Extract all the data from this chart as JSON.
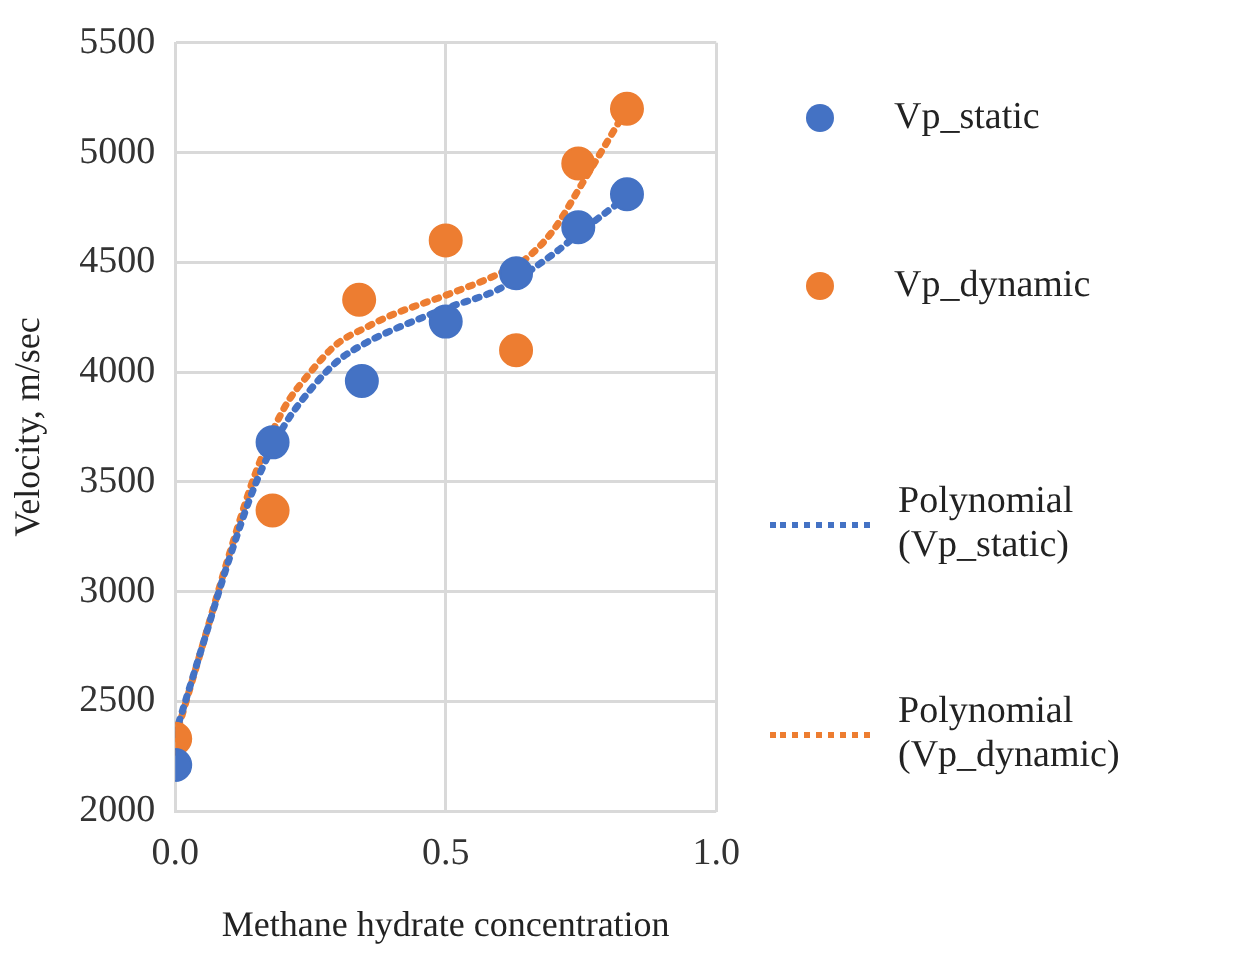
{
  "chart_data": {
    "type": "scatter",
    "xlabel": "Methane hydrate concentration",
    "ylabel": "Velocity, m/sec",
    "xlim": [
      0,
      1
    ],
    "xticks": [
      {
        "value": 0,
        "label": "0.0"
      },
      {
        "value": 0.5,
        "label": "0.5"
      },
      {
        "value": 1,
        "label": "1.0"
      }
    ],
    "ylim": [
      2000,
      5500
    ],
    "yticks": [
      2000,
      2500,
      3000,
      3500,
      4000,
      4500,
      5000,
      5500
    ],
    "grid": true,
    "legend": "right",
    "marker": "circle",
    "series": [
      {
        "name": "Vp_static",
        "color": "#4472c4",
        "x": [
          0,
          0.18,
          0.345,
          0.5,
          0.63,
          0.745,
          0.835
        ],
        "values": [
          2210,
          3680,
          3960,
          4230,
          4450,
          4660,
          4810
        ]
      },
      {
        "name": "Vp_dynamic",
        "color": "#ed7d31",
        "x": [
          0,
          0.18,
          0.34,
          0.5,
          0.63,
          0.745,
          0.835
        ],
        "values": [
          2330,
          3370,
          4330,
          4600,
          4100,
          4950,
          5200
        ]
      },
      {
        "name": "Polynomial (Vp_static)",
        "type": "line",
        "line_style": "dotted",
        "marker": "none",
        "color": "#4472c4",
        "x": [
          0,
          0.05,
          0.1,
          0.15,
          0.2,
          0.25,
          0.3,
          0.35,
          0.4,
          0.5,
          0.6,
          0.7,
          0.75,
          0.835
        ],
        "values": [
          2350,
          2750,
          3150,
          3500,
          3750,
          3920,
          4050,
          4130,
          4190,
          4290,
          4380,
          4540,
          4640,
          4800
        ]
      },
      {
        "name": "Polynomial (Vp_dynamic)",
        "type": "line",
        "line_style": "dotted",
        "marker": "none",
        "color": "#ed7d31",
        "x": [
          0,
          0.05,
          0.1,
          0.15,
          0.2,
          0.25,
          0.3,
          0.35,
          0.4,
          0.5,
          0.6,
          0.65,
          0.7,
          0.75,
          0.835
        ],
        "values": [
          2330,
          2750,
          3170,
          3550,
          3830,
          4000,
          4130,
          4200,
          4260,
          4350,
          4450,
          4520,
          4650,
          4850,
          5200
        ]
      }
    ]
  }
}
